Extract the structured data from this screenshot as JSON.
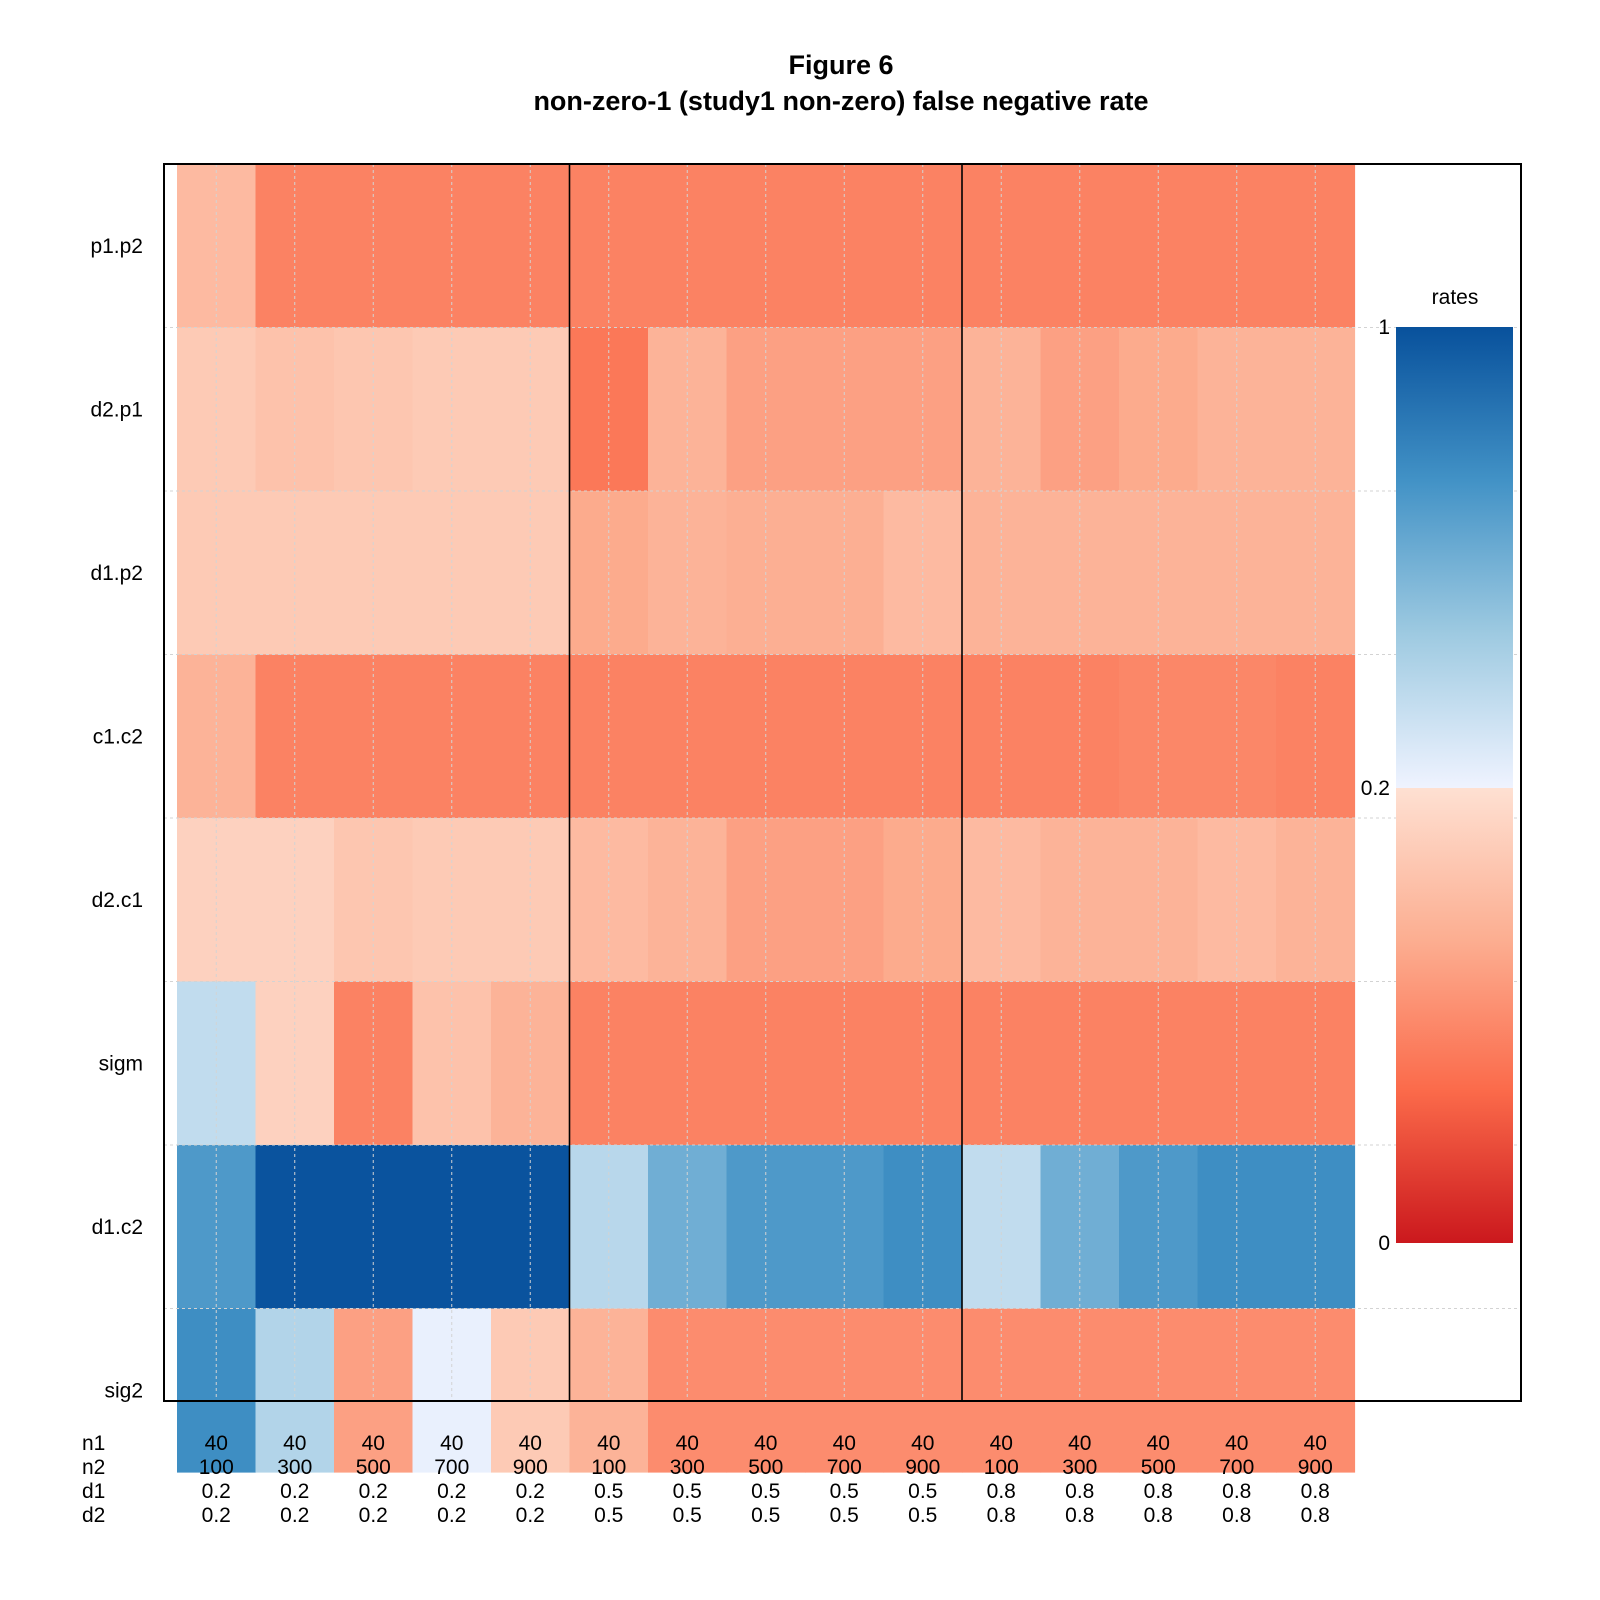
{
  "chart_data": {
    "type": "heatmap",
    "title": "Figure 6",
    "subtitle": "non-zero-1 (study1 non-zero) false negative rate",
    "rows": [
      "p1.p2",
      "d2.p1",
      "d1.p2",
      "c1.c2",
      "d2.c1",
      "sigm",
      "d1.c2",
      "sig2"
    ],
    "x_label_rows": [
      {
        "name": "n1",
        "values": [
          "40",
          "40",
          "40",
          "40",
          "40",
          "40",
          "40",
          "40",
          "40",
          "40",
          "40",
          "40",
          "40",
          "40",
          "40"
        ]
      },
      {
        "name": "n2",
        "values": [
          "100",
          "300",
          "500",
          "700",
          "900",
          "100",
          "300",
          "500",
          "700",
          "900",
          "100",
          "300",
          "500",
          "700",
          "900"
        ]
      },
      {
        "name": "d1",
        "values": [
          "0.2",
          "0.2",
          "0.2",
          "0.2",
          "0.2",
          "0.5",
          "0.5",
          "0.5",
          "0.5",
          "0.5",
          "0.8",
          "0.8",
          "0.8",
          "0.8",
          "0.8"
        ]
      },
      {
        "name": "d2",
        "values": [
          "0.2",
          "0.2",
          "0.2",
          "0.2",
          "0.2",
          "0.5",
          "0.5",
          "0.5",
          "0.5",
          "0.5",
          "0.8",
          "0.8",
          "0.8",
          "0.8",
          "0.8"
        ]
      }
    ],
    "values": [
      [
        0.15,
        0.09,
        0.09,
        0.09,
        0.09,
        0.09,
        0.09,
        0.09,
        0.09,
        0.09,
        0.09,
        0.09,
        0.09,
        0.09,
        0.09
      ],
      [
        0.17,
        0.16,
        0.165,
        0.17,
        0.17,
        0.08,
        0.14,
        0.12,
        0.12,
        0.12,
        0.14,
        0.12,
        0.13,
        0.14,
        0.14
      ],
      [
        0.17,
        0.17,
        0.17,
        0.17,
        0.17,
        0.13,
        0.14,
        0.135,
        0.135,
        0.15,
        0.14,
        0.14,
        0.14,
        0.14,
        0.14
      ],
      [
        0.14,
        0.09,
        0.09,
        0.09,
        0.09,
        0.09,
        0.09,
        0.09,
        0.09,
        0.09,
        0.09,
        0.09,
        0.095,
        0.095,
        0.09
      ],
      [
        0.18,
        0.18,
        0.165,
        0.17,
        0.17,
        0.15,
        0.14,
        0.12,
        0.12,
        0.13,
        0.15,
        0.14,
        0.14,
        0.15,
        0.14
      ],
      [
        0.35,
        0.18,
        0.09,
        0.16,
        0.14,
        0.09,
        0.09,
        0.09,
        0.09,
        0.09,
        0.09,
        0.09,
        0.09,
        0.09,
        0.09
      ],
      [
        0.7,
        0.99,
        0.99,
        0.99,
        0.99,
        0.38,
        0.6,
        0.7,
        0.7,
        0.75,
        0.35,
        0.6,
        0.7,
        0.75,
        0.75
      ],
      [
        0.75,
        0.4,
        0.12,
        0.22,
        0.17,
        0.14,
        0.1,
        0.1,
        0.1,
        0.1,
        0.1,
        0.1,
        0.1,
        0.1,
        0.1
      ]
    ],
    "group_separators_after_columns": [
      5,
      10
    ],
    "legend": {
      "title": "rates",
      "labels": [
        "1",
        "0.2",
        "0"
      ],
      "label_values": [
        1,
        0.2,
        0
      ],
      "break_value": 0.2,
      "low_colors": [
        "#CB181D",
        "#FB6A4A",
        "#FCAE91",
        "#FEE0D2"
      ],
      "high_colors": [
        "#EFF3FF",
        "#9ECAE1",
        "#4292C6",
        "#08519C"
      ],
      "placement": "right"
    },
    "grid": true
  }
}
